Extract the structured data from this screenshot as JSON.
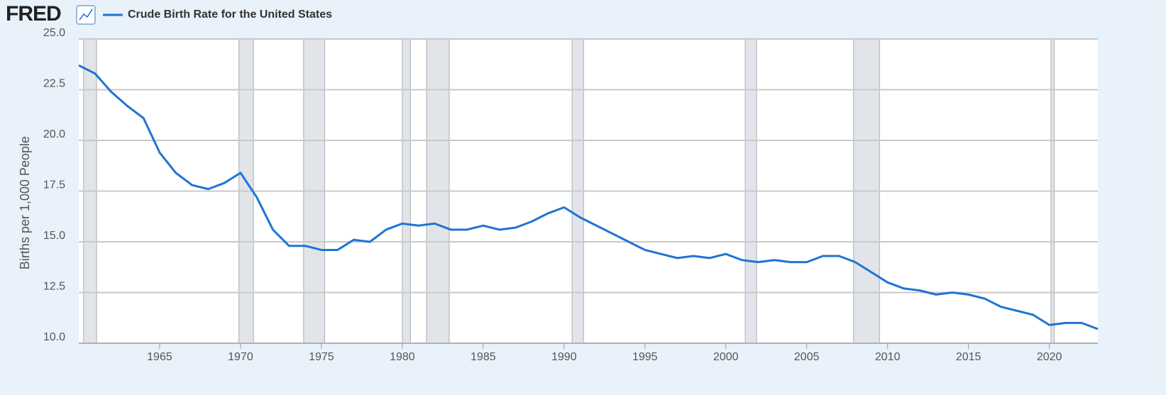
{
  "chart_data": {
    "type": "line",
    "logo": "FRED",
    "title": "Crude Birth Rate for the United States",
    "y_label": "Births per 1,000 People",
    "x": [
      1960,
      1961,
      1962,
      1963,
      1964,
      1965,
      1966,
      1967,
      1968,
      1969,
      1970,
      1971,
      1972,
      1973,
      1974,
      1975,
      1976,
      1977,
      1978,
      1979,
      1980,
      1981,
      1982,
      1983,
      1984,
      1985,
      1986,
      1987,
      1988,
      1989,
      1990,
      1991,
      1992,
      1993,
      1994,
      1995,
      1996,
      1997,
      1998,
      1999,
      2000,
      2001,
      2002,
      2003,
      2004,
      2005,
      2006,
      2007,
      2008,
      2009,
      2010,
      2011,
      2012,
      2013,
      2014,
      2015,
      2016,
      2017,
      2018,
      2019,
      2020,
      2021,
      2022,
      2023
    ],
    "series": [
      {
        "name": "Crude Birth Rate for the United States",
        "color": "#1f74d6",
        "values": [
          23.7,
          23.3,
          22.4,
          21.7,
          21.1,
          19.4,
          18.4,
          17.8,
          17.6,
          17.9,
          18.4,
          17.2,
          15.6,
          14.8,
          14.8,
          14.6,
          14.6,
          15.1,
          15.0,
          15.6,
          15.9,
          15.8,
          15.9,
          15.6,
          15.6,
          15.8,
          15.6,
          15.7,
          16.0,
          16.4,
          16.7,
          16.2,
          15.8,
          15.4,
          15.0,
          14.6,
          14.4,
          14.2,
          14.3,
          14.2,
          14.4,
          14.1,
          14.0,
          14.1,
          14.0,
          14.0,
          14.3,
          14.3,
          14.0,
          13.5,
          13.0,
          12.7,
          12.6,
          12.4,
          12.5,
          12.4,
          12.2,
          11.8,
          11.6,
          11.4,
          10.9,
          11.0,
          11.0,
          10.7
        ]
      }
    ],
    "recessions": [
      [
        1960.3,
        1961.1
      ],
      [
        1969.9,
        1970.8
      ],
      [
        1973.9,
        1975.2
      ],
      [
        1980.0,
        1980.5
      ],
      [
        1981.5,
        1982.9
      ],
      [
        1990.5,
        1991.2
      ],
      [
        2001.2,
        2001.9
      ],
      [
        2007.9,
        2009.5
      ],
      [
        2020.1,
        2020.3
      ]
    ],
    "xlim": [
      1960,
      2023
    ],
    "xticks": [
      1965,
      1970,
      1975,
      1980,
      1985,
      1990,
      1995,
      2000,
      2005,
      2010,
      2015,
      2020
    ],
    "ylim": [
      10,
      25
    ],
    "yticks": [
      {
        "value": 10,
        "label": "10.0"
      },
      {
        "value": 12.5,
        "label": "12.5"
      },
      {
        "value": 15,
        "label": "15.0"
      },
      {
        "value": 17.5,
        "label": "17.5"
      },
      {
        "value": 20,
        "label": "20.0"
      },
      {
        "value": 22.5,
        "label": "22.5"
      },
      {
        "value": 25,
        "label": "25.0"
      }
    ],
    "grid": true
  }
}
